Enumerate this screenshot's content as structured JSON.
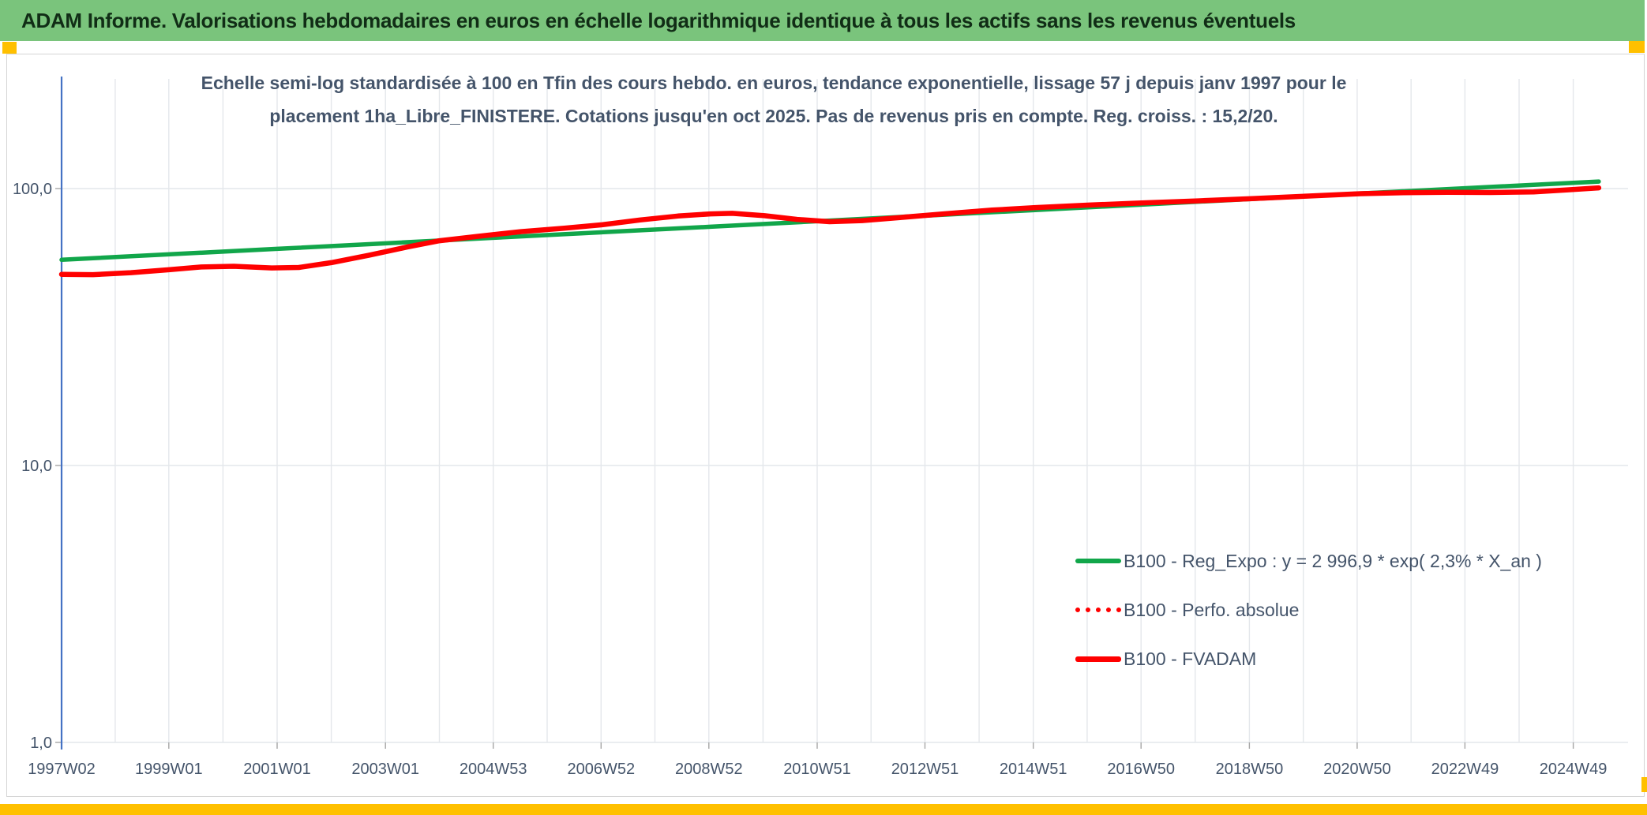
{
  "header": {
    "title": "ADAM Informe. Valorisations hebdomadaires en euros en échelle logarithmique identique à tous les actifs sans les revenus éventuels"
  },
  "colors": {
    "header_bg": "#7AC47C",
    "header_text": "#112D16",
    "slate": "#44546A",
    "axis_blue": "#4472C4",
    "grid_line": "#E4E7EB",
    "tick_gray": "#A6A6A6",
    "panel_border": "#D4D4D4",
    "marker_yellow": "#FFC000",
    "line_green": "#11A64A",
    "line_red": "#FF0000"
  },
  "chart_data": {
    "type": "line",
    "title_lines": [
      "Echelle semi-log standardisée à 100 en Tfin des cours hebdo. en euros, tendance exponentielle, lissage 57 j depuis janv 1997 pour le",
      "placement 1ha_Libre_FINISTERE. Cotations jusqu'en oct 2025. Pas de revenus pris en compte. Reg. croiss. : 15,2/20."
    ],
    "y_scale": "log10",
    "grid": "on",
    "legend_position": "inside-bottom-right",
    "x_axis": {
      "min_year": 1997.02,
      "max_year": 2025.5,
      "tick_labels": [
        "1997W02",
        "1999W01",
        "2001W01",
        "2003W01",
        "2004W53",
        "2006W52",
        "2008W52",
        "2010W51",
        "2012W51",
        "2014W51",
        "2016W50",
        "2018W50",
        "2020W50",
        "2022W49",
        "2024W49"
      ],
      "tick_years": [
        1997.02,
        1999.0,
        2001.0,
        2003.0,
        2004.99,
        2006.98,
        2008.97,
        2010.97,
        2012.96,
        2014.96,
        2016.95,
        2018.95,
        2020.94,
        2022.93,
        2024.93
      ]
    },
    "y_axis": {
      "range": [
        1,
        200
      ],
      "ticks": [
        {
          "value": 100,
          "label": "100,0"
        },
        {
          "value": 10,
          "label": "10,0"
        },
        {
          "value": 1,
          "label": "1,0"
        }
      ]
    },
    "series": [
      {
        "name": "B100 - Reg_Expo : y = 2 996,9 * exp( 2,3% *  X_an )",
        "slug": "reg-expo",
        "color": "#11A64A",
        "style": "solid",
        "stroke_width": 5.5,
        "points": [
          [
            1997.02,
            55.3
          ],
          [
            2001,
            60.6
          ],
          [
            2005,
            66.4
          ],
          [
            2009,
            72.8
          ],
          [
            2013,
            79.9
          ],
          [
            2017,
            87.6
          ],
          [
            2021,
            96.0
          ],
          [
            2025.4,
            106.0
          ]
        ]
      },
      {
        "name": "B100 - Perfo. absolue",
        "slug": "perfo-absolue",
        "color": "#FF0000",
        "style": "dotted",
        "stroke_width": 5,
        "points": [
          [
            1997.02,
            49.0
          ],
          [
            1997.6,
            48.9
          ],
          [
            1998.3,
            49.7
          ],
          [
            1999.0,
            50.9
          ],
          [
            1999.6,
            52.1
          ],
          [
            2000.2,
            52.4
          ],
          [
            2000.9,
            51.7
          ],
          [
            2001.4,
            51.9
          ],
          [
            2002.0,
            54.0
          ],
          [
            2002.7,
            57.5
          ],
          [
            2003.4,
            61.5
          ],
          [
            2004.0,
            64.8
          ],
          [
            2004.7,
            67.2
          ],
          [
            2005.5,
            69.9
          ],
          [
            2006.3,
            71.9
          ],
          [
            2007.0,
            74.0
          ],
          [
            2007.7,
            77.0
          ],
          [
            2008.4,
            79.6
          ],
          [
            2009.0,
            81.0
          ],
          [
            2009.4,
            81.4
          ],
          [
            2010.0,
            79.8
          ],
          [
            2010.6,
            77.4
          ],
          [
            2011.2,
            75.9
          ],
          [
            2011.8,
            76.6
          ],
          [
            2012.5,
            78.6
          ],
          [
            2013.3,
            81.0
          ],
          [
            2014.2,
            83.6
          ],
          [
            2015.0,
            85.4
          ],
          [
            2016.0,
            87.2
          ],
          [
            2017.0,
            88.8
          ],
          [
            2018.0,
            90.3
          ],
          [
            2019.0,
            92.0
          ],
          [
            2020.0,
            93.9
          ],
          [
            2021.0,
            95.8
          ],
          [
            2021.8,
            96.6
          ],
          [
            2022.6,
            96.9
          ],
          [
            2023.4,
            96.8
          ],
          [
            2024.2,
            97.3
          ],
          [
            2024.8,
            98.8
          ],
          [
            2025.4,
            100.6
          ]
        ]
      },
      {
        "name": "B100 - FVADAM",
        "slug": "fvadam",
        "color": "#FF0000",
        "style": "solid",
        "stroke_width": 6.5,
        "points": [
          [
            1997.02,
            49.0
          ],
          [
            1997.6,
            48.9
          ],
          [
            1998.3,
            49.7
          ],
          [
            1999.0,
            50.9
          ],
          [
            1999.6,
            52.1
          ],
          [
            2000.2,
            52.4
          ],
          [
            2000.9,
            51.7
          ],
          [
            2001.4,
            51.9
          ],
          [
            2002.0,
            54.0
          ],
          [
            2002.7,
            57.5
          ],
          [
            2003.4,
            61.5
          ],
          [
            2004.0,
            64.8
          ],
          [
            2004.7,
            67.2
          ],
          [
            2005.5,
            69.9
          ],
          [
            2006.3,
            71.9
          ],
          [
            2007.0,
            74.0
          ],
          [
            2007.7,
            77.0
          ],
          [
            2008.4,
            79.6
          ],
          [
            2009.0,
            81.0
          ],
          [
            2009.4,
            81.4
          ],
          [
            2010.0,
            79.8
          ],
          [
            2010.6,
            77.4
          ],
          [
            2011.2,
            75.9
          ],
          [
            2011.8,
            76.6
          ],
          [
            2012.5,
            78.6
          ],
          [
            2013.3,
            81.0
          ],
          [
            2014.2,
            83.6
          ],
          [
            2015.0,
            85.4
          ],
          [
            2016.0,
            87.2
          ],
          [
            2017.0,
            88.8
          ],
          [
            2018.0,
            90.3
          ],
          [
            2019.0,
            92.0
          ],
          [
            2020.0,
            93.9
          ],
          [
            2021.0,
            95.8
          ],
          [
            2021.8,
            96.6
          ],
          [
            2022.6,
            96.9
          ],
          [
            2023.4,
            96.8
          ],
          [
            2024.2,
            97.3
          ],
          [
            2024.8,
            98.8
          ],
          [
            2025.4,
            100.6
          ]
        ]
      }
    ]
  }
}
